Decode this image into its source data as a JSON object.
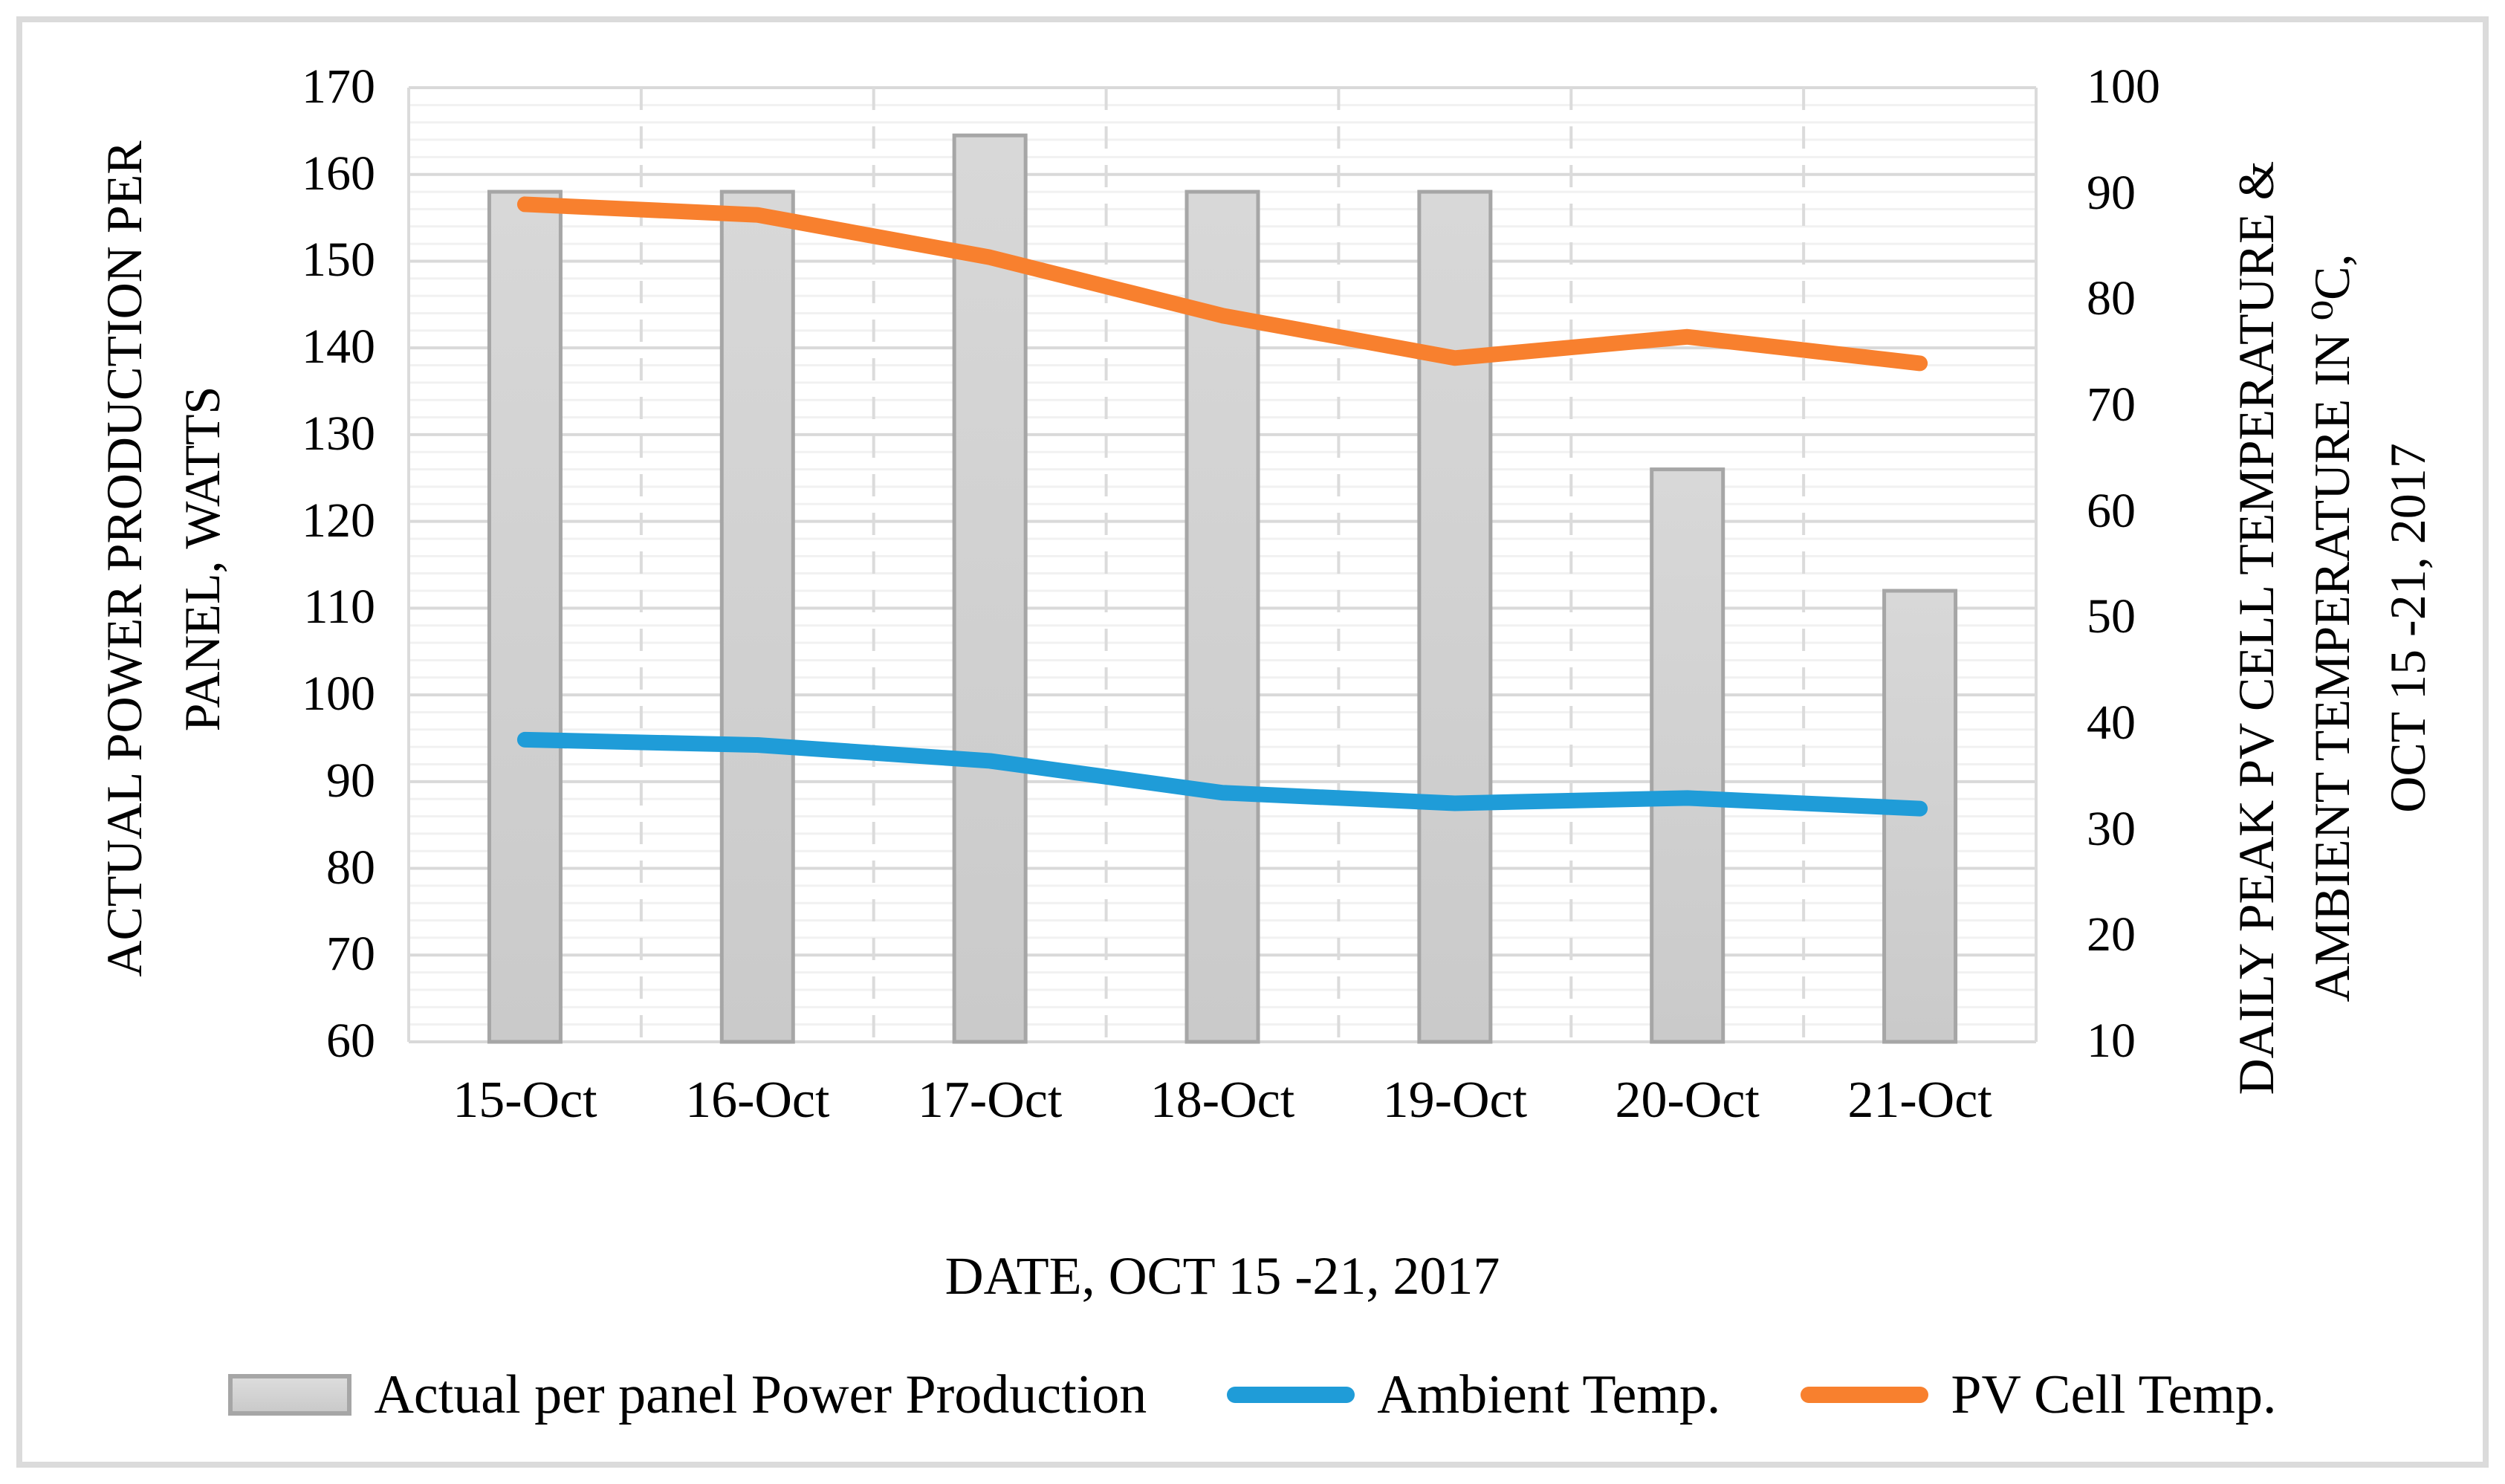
{
  "chart_data": {
    "type": "bar+line",
    "categories": [
      "15-Oct",
      "16-Oct",
      "17-Oct",
      "18-Oct",
      "19-Oct",
      "20-Oct",
      "21-Oct"
    ],
    "series": [
      {
        "name": "Actual per panel Power Production",
        "type": "bar",
        "axis": "left",
        "unit": "watts",
        "values": [
          158,
          158,
          164.5,
          158,
          158,
          126,
          112
        ],
        "fill_color": "#D0D0D0",
        "border_color": "#A6A6A6"
      },
      {
        "name": "Ambient Temp.",
        "type": "line",
        "axis": "right",
        "unit": "deg C",
        "values": [
          38.5,
          38,
          36.5,
          33.5,
          32.5,
          33,
          32
        ],
        "color": "#1F9CD8"
      },
      {
        "name": "PV Cell Temp.",
        "type": "line",
        "axis": "right",
        "unit": "deg C",
        "values": [
          89,
          88,
          84,
          78.5,
          74.5,
          76.5,
          74
        ],
        "color": "#F8802E"
      }
    ],
    "left_axis": {
      "title_lines": [
        "ACTUAL POWER PRODUCTION PER",
        "PANEL, WATTS"
      ],
      "min": 60,
      "max": 170,
      "major_step": 10,
      "minor_step": 2,
      "ticks": [
        170,
        160,
        150,
        140,
        130,
        120,
        110,
        100,
        90,
        80,
        70,
        60
      ]
    },
    "right_axis": {
      "title_lines": [
        "DAILY PEAK PV CELL TEMPERATURE &",
        "AMBIENT TEMPERATURE IN ⁰C,",
        "OCT 15 -21,  2017"
      ],
      "min": 10,
      "max": 100,
      "major_step": 10,
      "ticks": [
        100,
        90,
        80,
        70,
        60,
        50,
        40,
        30,
        20,
        10
      ]
    },
    "x_axis": {
      "title": "DATE, OCT 15 -21, 2017"
    },
    "legend_position": "bottom",
    "grid": {
      "major": true,
      "minor": true,
      "vertical_category_lines": true
    },
    "colors": {
      "major_grid": "#D9D9D9",
      "minor_grid": "#F1F1F1",
      "vertical_grid": "#DBDBDB",
      "frame_border": "#DBDBDB",
      "text": "#000000"
    }
  }
}
